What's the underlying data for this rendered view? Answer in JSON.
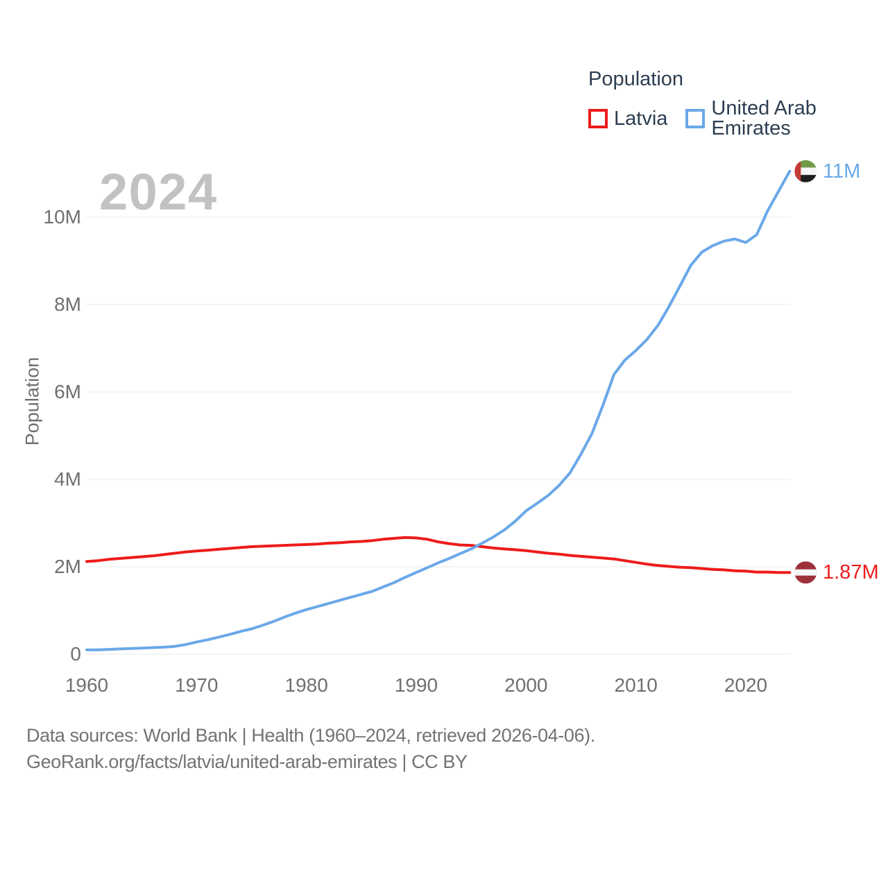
{
  "watermark": "2024",
  "legend": {
    "title": "Population",
    "items": [
      {
        "label": "Latvia",
        "color": "#ee1b1b"
      },
      {
        "label": "United Arab Emirates",
        "color": "#6aa8e8"
      }
    ]
  },
  "footer": {
    "line1": "Data sources: World Bank | Health (1960–2024, retrieved 2026-04-06).",
    "line2": "GeoRank.org/facts/latvia/united-arab-emirates | CC BY"
  },
  "colors": {
    "grid": "#e9e9e9",
    "tick_text": "#6f6f6f",
    "legend_text": "#2c3e50",
    "watermark": "#c2c2c2"
  },
  "flag_colors": {
    "lv": {
      "maroon": "#9E3039",
      "white": "#f5f5f5"
    },
    "ae": {
      "red": "#c43a36",
      "green": "#6f9a47",
      "white": "#f5f5f5",
      "black": "#1f1f1f"
    }
  },
  "chart_data": {
    "type": "line",
    "title": "Population",
    "xlabel": "",
    "ylabel": "Population",
    "units": "millions of people",
    "xlim": [
      1960,
      2024
    ],
    "ylim": [
      0,
      11.5
    ],
    "grid": "horizontal",
    "legend_position": "top-right",
    "x_ticks": [
      {
        "value": 1960,
        "label": "1960"
      },
      {
        "value": 1970,
        "label": "1970"
      },
      {
        "value": 1980,
        "label": "1980"
      },
      {
        "value": 1990,
        "label": "1990"
      },
      {
        "value": 2000,
        "label": "2000"
      },
      {
        "value": 2010,
        "label": "2010"
      },
      {
        "value": 2020,
        "label": "2020"
      }
    ],
    "y_ticks": [
      {
        "value": 0,
        "label": "0"
      },
      {
        "value": 2,
        "label": "2M"
      },
      {
        "value": 4,
        "label": "4M"
      },
      {
        "value": 6,
        "label": "6M"
      },
      {
        "value": 8,
        "label": "8M"
      },
      {
        "value": 10,
        "label": "10M"
      }
    ],
    "years": [
      1960,
      1961,
      1962,
      1963,
      1964,
      1965,
      1966,
      1967,
      1968,
      1969,
      1970,
      1971,
      1972,
      1973,
      1974,
      1975,
      1976,
      1977,
      1978,
      1979,
      1980,
      1981,
      1982,
      1983,
      1984,
      1985,
      1986,
      1987,
      1988,
      1989,
      1990,
      1991,
      1992,
      1993,
      1994,
      1995,
      1996,
      1997,
      1998,
      1999,
      2000,
      2001,
      2002,
      2003,
      2004,
      2005,
      2006,
      2007,
      2008,
      2009,
      2010,
      2011,
      2012,
      2013,
      2014,
      2015,
      2016,
      2017,
      2018,
      2019,
      2020,
      2021,
      2022,
      2023,
      2024
    ],
    "series": [
      {
        "name": "Latvia",
        "color": "#ee1b1b",
        "flag": "lv",
        "end_label": "1.87M",
        "end_value_millions": 1.87,
        "values": [
          2.12,
          2.14,
          2.17,
          2.19,
          2.21,
          2.23,
          2.25,
          2.28,
          2.31,
          2.34,
          2.36,
          2.38,
          2.4,
          2.42,
          2.44,
          2.46,
          2.47,
          2.48,
          2.49,
          2.5,
          2.51,
          2.52,
          2.54,
          2.55,
          2.57,
          2.58,
          2.6,
          2.63,
          2.65,
          2.67,
          2.66,
          2.63,
          2.57,
          2.53,
          2.5,
          2.49,
          2.46,
          2.43,
          2.41,
          2.39,
          2.37,
          2.34,
          2.31,
          2.29,
          2.26,
          2.24,
          2.22,
          2.2,
          2.18,
          2.14,
          2.1,
          2.06,
          2.03,
          2.01,
          1.99,
          1.98,
          1.96,
          1.94,
          1.93,
          1.91,
          1.9,
          1.88,
          1.88,
          1.87,
          1.87
        ]
      },
      {
        "name": "United Arab Emirates",
        "color": "#6aa8e8",
        "flag": "ae",
        "end_label": "11M",
        "end_value_millions": 11.05,
        "values": [
          0.1,
          0.1,
          0.11,
          0.12,
          0.13,
          0.14,
          0.15,
          0.16,
          0.18,
          0.22,
          0.28,
          0.33,
          0.39,
          0.45,
          0.52,
          0.58,
          0.66,
          0.75,
          0.85,
          0.94,
          1.02,
          1.09,
          1.16,
          1.23,
          1.3,
          1.37,
          1.44,
          1.54,
          1.64,
          1.76,
          1.87,
          1.98,
          2.09,
          2.19,
          2.3,
          2.41,
          2.54,
          2.68,
          2.84,
          3.04,
          3.28,
          3.45,
          3.63,
          3.86,
          4.15,
          4.58,
          5.05,
          5.7,
          6.4,
          6.73,
          6.95,
          7.2,
          7.52,
          7.95,
          8.42,
          8.9,
          9.2,
          9.35,
          9.45,
          9.5,
          9.42,
          9.6,
          10.15,
          10.6,
          11.05
        ]
      }
    ]
  }
}
